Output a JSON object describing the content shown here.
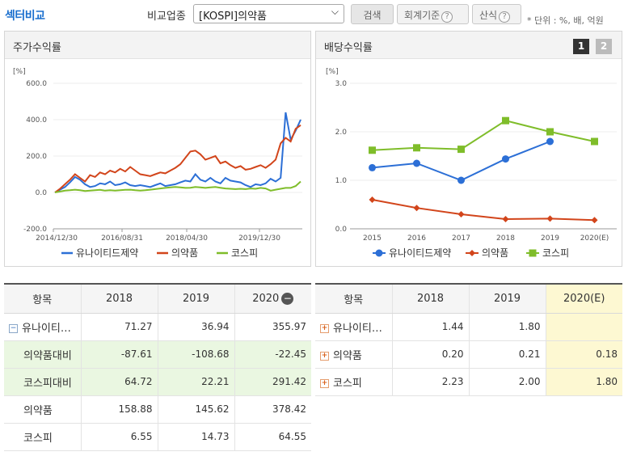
{
  "header": {
    "title": "섹터비교",
    "compare_label": "비교업종",
    "select_value": "[KOSPI]의약품",
    "search_label": "검색",
    "acct_label": "회계기준",
    "formula_label": "산식",
    "unit_text": "* 단위 : %, 배, 억원"
  },
  "stock_chart": {
    "heading": "주가수익률",
    "unit": "[%]",
    "colors": {
      "company": "#2c6fd6",
      "sector": "#d2451b",
      "kospi": "#7fbd2a"
    },
    "chart_data": {
      "type": "line",
      "title": "주가수익률",
      "ylabel": "[%]",
      "ylim": [
        -200,
        600
      ],
      "yticks": [
        "600.0",
        "400.0",
        "200.0",
        "0.0",
        "-200.0"
      ],
      "xticks": [
        "2014/12/30",
        "2016/08/31",
        "2018/04/30",
        "2019/12/30"
      ],
      "series": [
        {
          "name": "유나이티드제약",
          "values": [
            0,
            15,
            30,
            55,
            85,
            70,
            45,
            30,
            35,
            50,
            45,
            60,
            40,
            45,
            55,
            40,
            35,
            40,
            35,
            30,
            40,
            50,
            35,
            40,
            45,
            55,
            65,
            60,
            100,
            70,
            60,
            80,
            60,
            50,
            80,
            65,
            60,
            55,
            40,
            30,
            45,
            40,
            50,
            75,
            60,
            80,
            440,
            290,
            340,
            400
          ]
        },
        {
          "name": "의약품",
          "values": [
            0,
            20,
            45,
            70,
            100,
            80,
            60,
            95,
            85,
            110,
            100,
            120,
            110,
            130,
            115,
            140,
            120,
            100,
            95,
            90,
            100,
            110,
            105,
            120,
            135,
            155,
            190,
            225,
            230,
            210,
            180,
            190,
            200,
            160,
            170,
            150,
            135,
            145,
            125,
            130,
            140,
            150,
            135,
            155,
            180,
            270,
            300,
            280,
            350,
            370
          ]
        },
        {
          "name": "코스피",
          "values": [
            0,
            5,
            10,
            12,
            15,
            12,
            8,
            10,
            12,
            14,
            10,
            12,
            10,
            12,
            14,
            15,
            12,
            10,
            12,
            15,
            18,
            22,
            25,
            28,
            30,
            28,
            25,
            26,
            30,
            28,
            25,
            28,
            30,
            26,
            22,
            20,
            18,
            20,
            18,
            22,
            20,
            25,
            22,
            10,
            15,
            20,
            25,
            25,
            35,
            60
          ]
        }
      ]
    }
  },
  "dividend_chart": {
    "heading": "배당수익률",
    "unit": "[%]",
    "page1": "1",
    "page2": "2",
    "chart_data": {
      "type": "line",
      "title": "배당수익률",
      "ylabel": "[%]",
      "ylim": [
        0,
        3
      ],
      "yticks": [
        "3.0",
        "2.0",
        "1.0",
        "0.0"
      ],
      "categories": [
        "2015",
        "2016",
        "2017",
        "2018",
        "2019",
        "2020(E)"
      ],
      "series": [
        {
          "name": "유나이티드제약",
          "values": [
            1.26,
            1.35,
            1.0,
            1.44,
            1.8,
            null
          ]
        },
        {
          "name": "의약품",
          "values": [
            0.6,
            0.43,
            0.3,
            0.2,
            0.21,
            0.18
          ]
        },
        {
          "name": "코스피",
          "values": [
            1.62,
            1.67,
            1.64,
            2.23,
            2.0,
            1.8
          ]
        }
      ]
    }
  },
  "stock_table": {
    "headers": [
      "항목",
      "2018",
      "2019",
      "2020"
    ],
    "rows": [
      {
        "label": "유나이티…",
        "v1": "71.27",
        "v2": "36.94",
        "v3": "355.97"
      },
      {
        "label": "의약품대비",
        "v1": "-87.61",
        "v2": "-108.68",
        "v3": "-22.45"
      },
      {
        "label": "코스피대비",
        "v1": "64.72",
        "v2": "22.21",
        "v3": "291.42"
      },
      {
        "label": "의약품",
        "v1": "158.88",
        "v2": "145.62",
        "v3": "378.42"
      },
      {
        "label": "코스피",
        "v1": "6.55",
        "v2": "14.73",
        "v3": "64.55"
      }
    ]
  },
  "dividend_table": {
    "headers": [
      "항목",
      "2018",
      "2019",
      "2020(E)"
    ],
    "rows": [
      {
        "label": "유나이티…",
        "v1": "1.44",
        "v2": "1.80",
        "v3": ""
      },
      {
        "label": "의약품",
        "v1": "0.20",
        "v2": "0.21",
        "v3": "0.18"
      },
      {
        "label": "코스피",
        "v1": "2.23",
        "v2": "2.00",
        "v3": "1.80"
      }
    ]
  }
}
